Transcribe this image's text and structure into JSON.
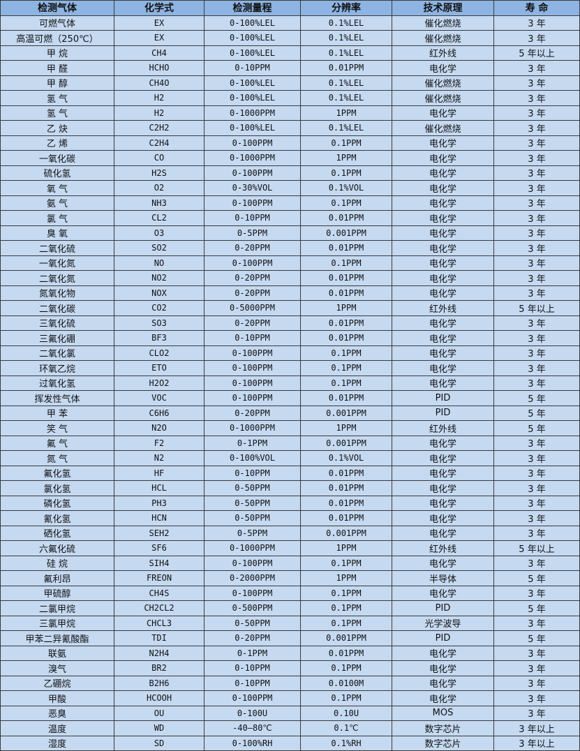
{
  "colors": {
    "header_bg": "#8db4e2",
    "row_bg": "#c5d9f1",
    "border": "#3a3a3a"
  },
  "table": {
    "headers": [
      "检测气体",
      "化学式",
      "检测量程",
      "分辨率",
      "技术原理",
      "寿 命"
    ],
    "rows": [
      [
        "可燃气体",
        "EX",
        "0-100%LEL",
        "0.1%LEL",
        "催化燃烧",
        "3 年"
      ],
      [
        "高温可燃（250℃）",
        "EX",
        "0-100%LEL",
        "0.1%LEL",
        "催化燃烧",
        "3 年"
      ],
      [
        "甲 烷",
        "CH4",
        "0-100%LEL",
        "0.1%LEL",
        "红外线",
        "5 年以上"
      ],
      [
        "甲 醛",
        "HCHO",
        "0-10PPM",
        "0.01PPM",
        "电化学",
        "3 年"
      ],
      [
        "甲 醇",
        "CH4O",
        "0-100%LEL",
        "0.1%LEL",
        "催化燃烧",
        "3 年"
      ],
      [
        "氢 气",
        "H2",
        "0-100%LEL",
        "0.1%LEL",
        "催化燃烧",
        "3 年"
      ],
      [
        "氢 气",
        "H2",
        "0-1000PPM",
        "1PPM",
        "电化学",
        "3 年"
      ],
      [
        "乙 炔",
        "C2H2",
        "0-100%LEL",
        "0.1%LEL",
        "催化燃烧",
        "3 年"
      ],
      [
        "乙 烯",
        "C2H4",
        "0-100PPM",
        "0.1PPM",
        "电化学",
        "3 年"
      ],
      [
        "一氧化碳",
        "CO",
        "0-1000PPM",
        "1PPM",
        "电化学",
        "3 年"
      ],
      [
        "硫化氢",
        "H2S",
        "0-100PPM",
        "0.1PPM",
        "电化学",
        "3 年"
      ],
      [
        "氧 气",
        "O2",
        "0-30%VOL",
        "0.1%VOL",
        "电化学",
        "3 年"
      ],
      [
        "氨 气",
        "NH3",
        "0-100PPM",
        "0.1PPM",
        "电化学",
        "3 年"
      ],
      [
        "氯 气",
        "CL2",
        "0-10PPM",
        "0.01PPM",
        "电化学",
        "3 年"
      ],
      [
        "臭 氧",
        "O3",
        "0-5PPM",
        "0.001PPM",
        "电化学",
        "3 年"
      ],
      [
        "二氧化硫",
        "SO2",
        "0-20PPM",
        "0.01PPM",
        "电化学",
        "3 年"
      ],
      [
        "一氧化氮",
        "NO",
        "0-100PPM",
        "0.1PPM",
        "电化学",
        "3 年"
      ],
      [
        "二氧化氮",
        "NO2",
        "0-20PPM",
        "0.01PPM",
        "电化学",
        "3 年"
      ],
      [
        "氮氧化物",
        "NOX",
        "0-20PPM",
        "0.01PPM",
        "电化学",
        "3 年"
      ],
      [
        "二氧化碳",
        "CO2",
        "0-5000PPM",
        "1PPM",
        "红外线",
        "5 年以上"
      ],
      [
        "三氧化硫",
        "SO3",
        "0-20PPM",
        "0.01PPM",
        "电化学",
        "3 年"
      ],
      [
        "三氟化硼",
        "BF3",
        "0-10PPM",
        "0.01PPM",
        "电化学",
        "3 年"
      ],
      [
        "二氧化氯",
        "CLO2",
        "0-100PPM",
        "0.1PPM",
        "电化学",
        "3 年"
      ],
      [
        "环氧乙烷",
        "ETO",
        "0-100PPM",
        "0.1PPM",
        "电化学",
        "3 年"
      ],
      [
        "过氧化氢",
        "H2O2",
        "0-100PPM",
        "0.1PPM",
        "电化学",
        "3 年"
      ],
      [
        "挥发性气体",
        "VOC",
        "0-100PPM",
        "0.01PPM",
        "PID",
        "5 年"
      ],
      [
        "甲 苯",
        "C6H6",
        "0-20PPM",
        "0.001PPM",
        "PID",
        "5 年"
      ],
      [
        "笑 气",
        "N2O",
        "0-1000PPM",
        "1PPM",
        "红外线",
        "5 年"
      ],
      [
        "氟 气",
        "F2",
        "0-1PPM",
        "0.001PPM",
        "电化学",
        "3 年"
      ],
      [
        "氮 气",
        "N2",
        "0-100%VOL",
        "0.1%VOL",
        "电化学",
        "3 年"
      ],
      [
        "氟化氢",
        "HF",
        "0-10PPM",
        "0.01PPM",
        "电化学",
        "3 年"
      ],
      [
        "氯化氢",
        "HCL",
        "0-50PPM",
        "0.01PPM",
        "电化学",
        "3 年"
      ],
      [
        "磷化氢",
        "PH3",
        "0-50PPM",
        "0.01PPM",
        "电化学",
        "3 年"
      ],
      [
        "氰化氢",
        "HCN",
        "0-50PPM",
        "0.01PPM",
        "电化学",
        "3 年"
      ],
      [
        "硒化氢",
        "SEH2",
        "0-5PPM",
        "0.001PPM",
        "电化学",
        "3 年"
      ],
      [
        "六氟化硫",
        "SF6",
        "0-1000PPM",
        "1PPM",
        "红外线",
        "5 年以上"
      ],
      [
        "硅 烷",
        "SIH4",
        "0-100PPM",
        "0.1PPM",
        "电化学",
        "3 年"
      ],
      [
        "氟利昂",
        "FREON",
        "0-2000PPM",
        "1PPM",
        "半导体",
        "5 年"
      ],
      [
        "甲硫醇",
        "CH4S",
        "0-100PPM",
        "0.1PPM",
        "电化学",
        "3 年"
      ],
      [
        "二氯甲烷",
        "CH2CL2",
        "0-500PPM",
        "0.1PPM",
        "PID",
        "5 年"
      ],
      [
        "三氯甲烷",
        "CHCL3",
        "0-50PPM",
        "0.1PPM",
        "光学波导",
        "3 年"
      ],
      [
        "甲苯二异氰酸酯",
        "TDI",
        "0-20PPM",
        "0.001PPM",
        "PID",
        "5 年"
      ],
      [
        "联氨",
        "N2H4",
        "0-1PPM",
        "0.01PPM",
        "电化学",
        "3 年"
      ],
      [
        "溴气",
        "BR2",
        "0-10PPM",
        "0.1PPM",
        "电化学",
        "3 年"
      ],
      [
        "乙硼烷",
        "B2H6",
        "0-10PPM",
        "0.0100M",
        "电化学",
        "3 年"
      ],
      [
        "甲酸",
        "HCOOH",
        "0-100PPM",
        "0.1PPM",
        "电化学",
        "3 年"
      ],
      [
        "恶臭",
        "OU",
        "0-100U",
        "0.10U",
        "MOS",
        "3 年"
      ],
      [
        "温度",
        "WD",
        "-40—80℃",
        "0.1℃",
        "数字芯片",
        "3 年以上"
      ],
      [
        "湿度",
        "SD",
        "0-100%RH",
        "0.1%RH",
        "数字芯片",
        "3 年以上"
      ]
    ]
  }
}
